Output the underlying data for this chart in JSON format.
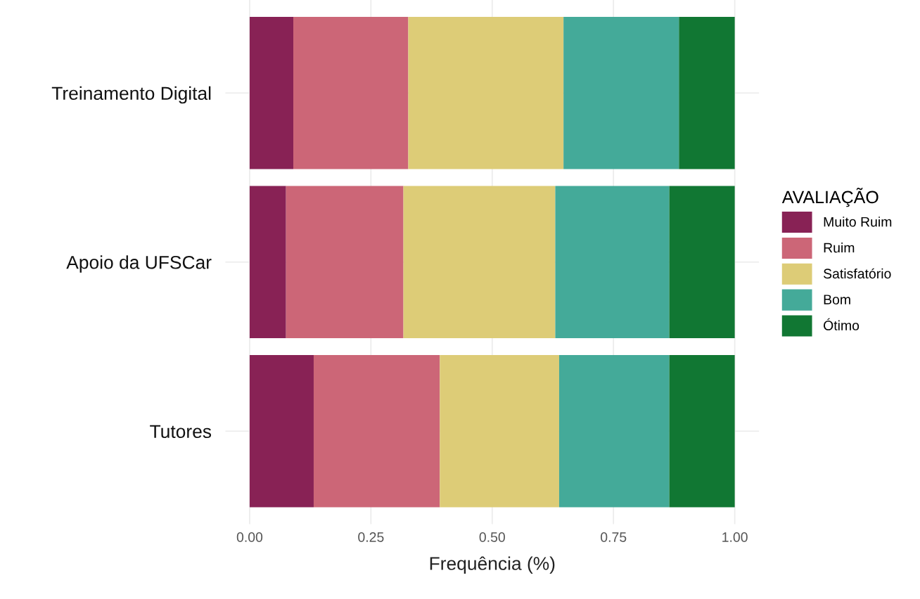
{
  "chart_data": {
    "type": "bar",
    "orientation": "horizontal",
    "stacked": true,
    "categories": [
      "Treinamento Digital",
      "Apoio da UFSCar",
      "Tutores"
    ],
    "series": [
      {
        "name": "Muito Ruim",
        "color": "#882255",
        "values": [
          0.09,
          0.075,
          0.132
        ]
      },
      {
        "name": "Ruim",
        "color": "#cc6677",
        "values": [
          0.237,
          0.242,
          0.26
        ]
      },
      {
        "name": "Satisfatório",
        "color": "#ddcc77",
        "values": [
          0.32,
          0.313,
          0.246
        ]
      },
      {
        "name": "Bom",
        "color": "#44aa99",
        "values": [
          0.238,
          0.235,
          0.227
        ]
      },
      {
        "name": "Ótimo",
        "color": "#117733",
        "values": [
          0.115,
          0.135,
          0.135
        ]
      }
    ],
    "xlabel": "Frequência (%)",
    "legend_title": "AVALIAÇÃO",
    "legend": "right",
    "xlim": [
      -0.05,
      1.05
    ],
    "xticks": [
      {
        "value": 0,
        "label": "0.00"
      },
      {
        "value": 0.25,
        "label": "0.25"
      },
      {
        "value": 0.5,
        "label": "0.50"
      },
      {
        "value": 0.75,
        "label": "0.75"
      },
      {
        "value": 1,
        "label": "1.00"
      }
    ],
    "grid": true
  }
}
